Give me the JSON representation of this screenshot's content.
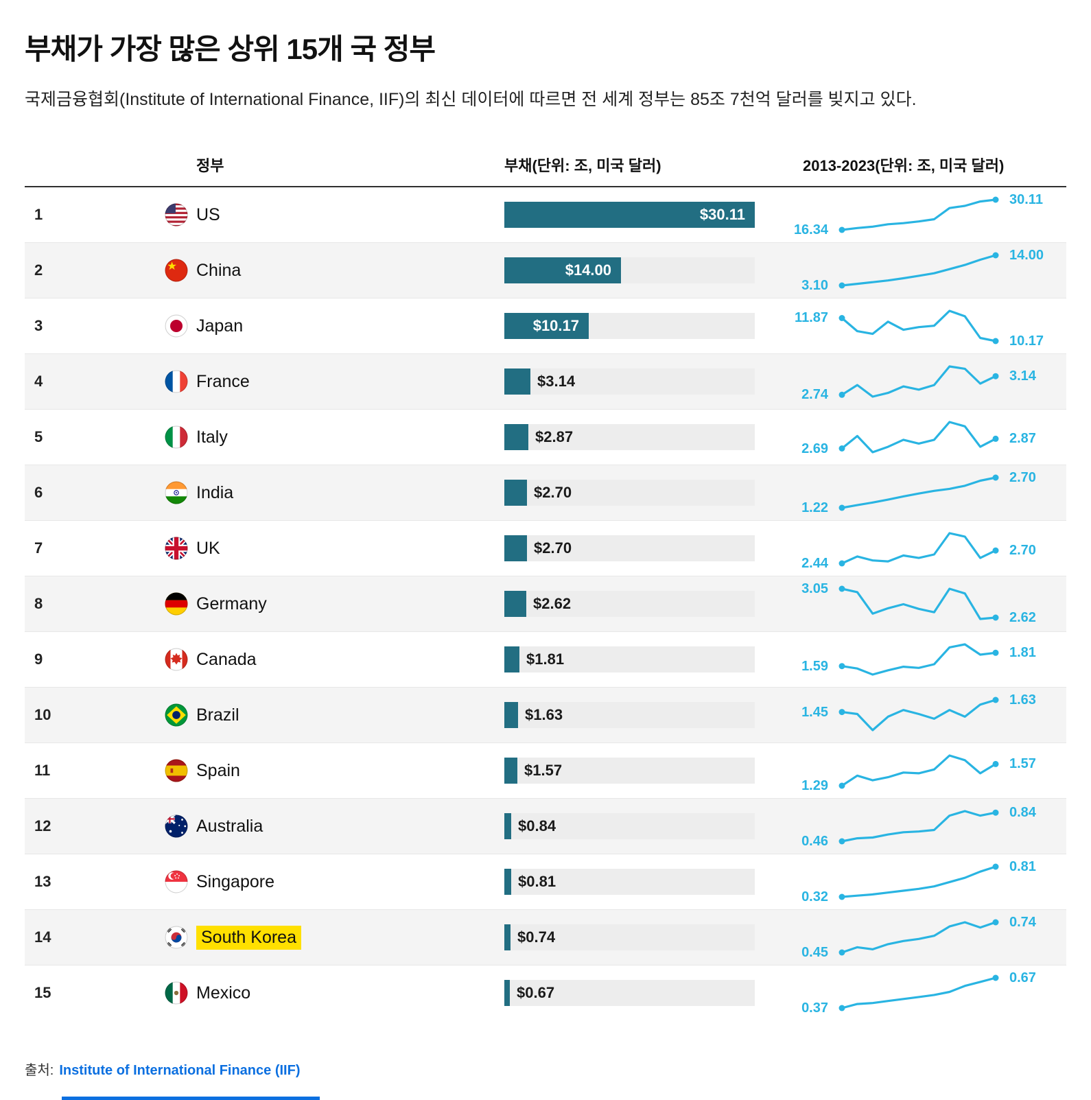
{
  "page": {
    "title": "부채가 가장 많은 상위 15개 국 정부",
    "subtitle": "국제금융협회(Institute of International Finance, IIF)의 최신 데이터에 따르면 전 세계 정부는 85조 7천억 달러를 빚지고 있다.",
    "source_label": "출처:",
    "source_link": "Institute of International Finance (IIF)"
  },
  "colors": {
    "bar": "#226e82",
    "bar_track": "#ededed",
    "spark": "#29b4e2",
    "highlight": "#ffe000",
    "link": "#0b6fe0"
  },
  "chart_data": {
    "type": "table",
    "title": "부채가 가장 많은 상위 15개 국 정부",
    "columns": [
      "정부",
      "부채(단위: 조, 미국 달러)",
      "2013-2023(단위: 조, 미국 달러)"
    ],
    "bar_axis_max": 30.11,
    "x_range": [
      2013,
      2023
    ],
    "rows": [
      {
        "rank": 1,
        "country": "US",
        "cc": "us",
        "flag": "us-flag",
        "debt": 30.11,
        "debt_label": "$30.11",
        "trend_start": 16.34,
        "trend_start_label": "16.34",
        "trend_end": 30.11,
        "trend_end_label": "30.11",
        "highlight": false,
        "trend": [
          16.34,
          17.2,
          17.8,
          18.9,
          19.4,
          20.2,
          21.2,
          26.3,
          27.3,
          29.3,
          30.11
        ]
      },
      {
        "rank": 2,
        "country": "China",
        "cc": "cn",
        "flag": "china-flag",
        "debt": 14.0,
        "debt_label": "$14.00",
        "trend_start": 3.1,
        "trend_start_label": "3.10",
        "trend_end": 14.0,
        "trend_end_label": "14.00",
        "highlight": false,
        "trend": [
          3.1,
          3.7,
          4.3,
          4.9,
          5.7,
          6.6,
          7.5,
          9.0,
          10.5,
          12.4,
          14.0
        ]
      },
      {
        "rank": 3,
        "country": "Japan",
        "cc": "jp",
        "flag": "japan-flag",
        "debt": 10.17,
        "debt_label": "$10.17",
        "trend_start": 11.87,
        "trend_start_label": "11.87",
        "trend_end": 10.17,
        "trend_end_label": "10.17",
        "highlight": false,
        "trend": [
          11.87,
          10.9,
          10.7,
          11.6,
          11.0,
          11.2,
          11.3,
          12.4,
          12.0,
          10.4,
          10.17
        ]
      },
      {
        "rank": 4,
        "country": "France",
        "cc": "fr",
        "flag": "france-flag",
        "debt": 3.14,
        "debt_label": "$3.14",
        "trend_start": 2.74,
        "trend_start_label": "2.74",
        "trend_end": 3.14,
        "trend_end_label": "3.14",
        "highlight": false,
        "trend": [
          2.74,
          2.95,
          2.7,
          2.78,
          2.92,
          2.85,
          2.95,
          3.35,
          3.3,
          2.98,
          3.14
        ]
      },
      {
        "rank": 5,
        "country": "Italy",
        "cc": "it",
        "flag": "italy-flag",
        "debt": 2.87,
        "debt_label": "$2.87",
        "trend_start": 2.69,
        "trend_start_label": "2.69",
        "trend_end": 2.87,
        "trend_end_label": "2.87",
        "highlight": false,
        "trend": [
          2.69,
          2.92,
          2.62,
          2.72,
          2.85,
          2.78,
          2.85,
          3.18,
          3.1,
          2.72,
          2.87
        ]
      },
      {
        "rank": 6,
        "country": "India",
        "cc": "in",
        "flag": "india-flag",
        "debt": 2.7,
        "debt_label": "$2.70",
        "trend_start": 1.22,
        "trend_start_label": "1.22",
        "trend_end": 2.7,
        "trend_end_label": "2.70",
        "highlight": false,
        "trend": [
          1.22,
          1.35,
          1.48,
          1.62,
          1.78,
          1.92,
          2.05,
          2.15,
          2.3,
          2.55,
          2.7
        ]
      },
      {
        "rank": 7,
        "country": "UK",
        "cc": "uk",
        "flag": "uk-flag",
        "debt": 2.7,
        "debt_label": "$2.70",
        "trend_start": 2.44,
        "trend_start_label": "2.44",
        "trend_end": 2.7,
        "trend_end_label": "2.70",
        "highlight": false,
        "trend": [
          2.44,
          2.58,
          2.5,
          2.48,
          2.6,
          2.55,
          2.62,
          3.05,
          2.98,
          2.55,
          2.7
        ]
      },
      {
        "rank": 8,
        "country": "Germany",
        "cc": "de",
        "flag": "germany-flag",
        "debt": 2.62,
        "debt_label": "$2.62",
        "trend_start": 3.05,
        "trend_start_label": "3.05",
        "trend_end": 2.62,
        "trend_end_label": "2.62",
        "highlight": false,
        "trend": [
          3.05,
          3.0,
          2.68,
          2.76,
          2.82,
          2.75,
          2.7,
          3.05,
          2.98,
          2.6,
          2.62
        ]
      },
      {
        "rank": 9,
        "country": "Canada",
        "cc": "ca",
        "flag": "canada-flag",
        "debt": 1.81,
        "debt_label": "$1.81",
        "trend_start": 1.59,
        "trend_start_label": "1.59",
        "trend_end": 1.81,
        "trend_end_label": "1.81",
        "highlight": false,
        "trend": [
          1.59,
          1.55,
          1.45,
          1.52,
          1.58,
          1.56,
          1.62,
          1.9,
          1.95,
          1.78,
          1.81
        ]
      },
      {
        "rank": 10,
        "country": "Brazil",
        "cc": "br",
        "flag": "brazil-flag",
        "debt": 1.63,
        "debt_label": "$1.63",
        "trend_start": 1.45,
        "trend_start_label": "1.45",
        "trend_end": 1.63,
        "trend_end_label": "1.63",
        "highlight": false,
        "trend": [
          1.45,
          1.42,
          1.18,
          1.38,
          1.48,
          1.42,
          1.35,
          1.48,
          1.38,
          1.56,
          1.63
        ]
      },
      {
        "rank": 11,
        "country": "Spain",
        "cc": "es",
        "flag": "spain-flag",
        "debt": 1.57,
        "debt_label": "$1.57",
        "trend_start": 1.29,
        "trend_start_label": "1.29",
        "trend_end": 1.57,
        "trend_end_label": "1.57",
        "highlight": false,
        "trend": [
          1.29,
          1.42,
          1.36,
          1.4,
          1.46,
          1.45,
          1.5,
          1.68,
          1.62,
          1.45,
          1.57
        ]
      },
      {
        "rank": 12,
        "country": "Australia",
        "cc": "au",
        "flag": "australia-flag",
        "debt": 0.84,
        "debt_label": "$0.84",
        "trend_start": 0.46,
        "trend_start_label": "0.46",
        "trend_end": 0.84,
        "trend_end_label": "0.84",
        "highlight": false,
        "trend": [
          0.46,
          0.5,
          0.51,
          0.55,
          0.58,
          0.59,
          0.61,
          0.8,
          0.86,
          0.8,
          0.84
        ]
      },
      {
        "rank": 13,
        "country": "Singapore",
        "cc": "sg",
        "flag": "singapore-flag",
        "debt": 0.81,
        "debt_label": "$0.81",
        "trend_start": 0.32,
        "trend_start_label": "0.32",
        "trend_end": 0.81,
        "trend_end_label": "0.81",
        "highlight": false,
        "trend": [
          0.32,
          0.34,
          0.36,
          0.39,
          0.42,
          0.45,
          0.49,
          0.56,
          0.63,
          0.73,
          0.81
        ]
      },
      {
        "rank": 14,
        "country": "South Korea",
        "cc": "kr",
        "flag": "south-korea-flag",
        "debt": 0.74,
        "debt_label": "$0.74",
        "trend_start": 0.45,
        "trend_start_label": "0.45",
        "trend_end": 0.74,
        "trend_end_label": "0.74",
        "highlight": true,
        "trend": [
          0.45,
          0.5,
          0.48,
          0.53,
          0.56,
          0.58,
          0.61,
          0.7,
          0.74,
          0.69,
          0.74
        ]
      },
      {
        "rank": 15,
        "country": "Mexico",
        "cc": "mx",
        "flag": "mexico-flag",
        "debt": 0.67,
        "debt_label": "$0.67",
        "trend_start": 0.37,
        "trend_start_label": "0.37",
        "trend_end": 0.67,
        "trend_end_label": "0.67",
        "highlight": false,
        "trend": [
          0.37,
          0.41,
          0.42,
          0.44,
          0.46,
          0.48,
          0.5,
          0.53,
          0.59,
          0.63,
          0.67
        ]
      }
    ]
  }
}
